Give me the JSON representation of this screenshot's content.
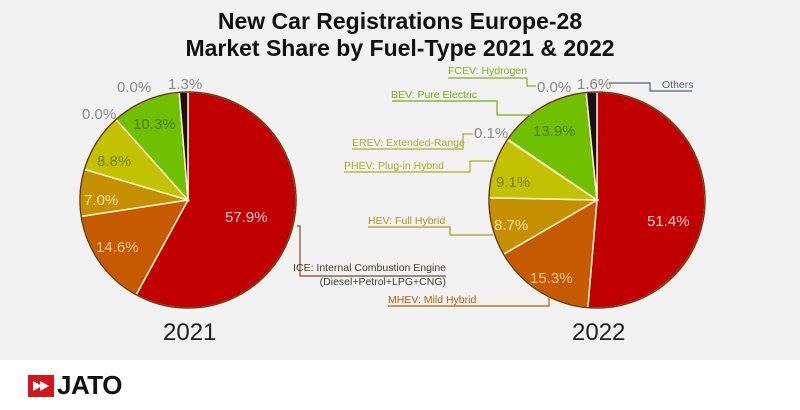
{
  "title_line1": "New Car Registrations Europe-28",
  "title_line2": "Market Share by Fuel-Type 2021 & 2022",
  "brand": "JATO",
  "chart_data": [
    {
      "type": "pie",
      "title": "2021",
      "categories": [
        "ICE",
        "MHEV",
        "HEV",
        "PHEV",
        "EREV",
        "BEV",
        "FCEV",
        "Others"
      ],
      "values": [
        57.9,
        14.6,
        7.0,
        8.8,
        0.0,
        10.3,
        0.0,
        1.3
      ],
      "labels": [
        "57.9%",
        "14.6%",
        "7.0%",
        "8.8%",
        "0.0%",
        "10.3%",
        "0.0%",
        "1.3%"
      ]
    },
    {
      "type": "pie",
      "title": "2022",
      "categories": [
        "ICE",
        "MHEV",
        "HEV",
        "PHEV",
        "EREV",
        "BEV",
        "FCEV",
        "Others"
      ],
      "values": [
        51.4,
        15.3,
        8.7,
        9.1,
        0.1,
        13.9,
        0.0,
        1.6
      ],
      "labels": [
        "51.4%",
        "15.3%",
        "8.7%",
        "9.1%",
        "0.1%",
        "13.9%",
        "0.0%",
        "1.6%"
      ]
    }
  ],
  "legend": {
    "ice_line1": "ICE: Internal Combustion Engine",
    "ice_line2": "(Diesel+Petrol+LPG+CNG)",
    "mhev": "MHEV: Mild Hybrid",
    "hev": "HEV: Full Hybrid",
    "phev": "PHEV: Plug-in Hybrid",
    "erev": "EREV: Extended-Range",
    "bev": "BEV: Pure Electric",
    "fcev": "FCEV: Hydrogen",
    "others": "Others"
  },
  "colors": [
    "#c00000",
    "#c55a00",
    "#c49000",
    "#c2c200",
    "#c2c200",
    "#70c000",
    "#70c000",
    "#1a1018"
  ],
  "legend_colors": {
    "ice": "#7a4a3a",
    "mhev": "#b85a10",
    "hev": "#b89020",
    "phev": "#a8b020",
    "erev": "#a8b030",
    "bev": "#70b010",
    "fcev": "#80b020",
    "others": "#5a6470"
  }
}
